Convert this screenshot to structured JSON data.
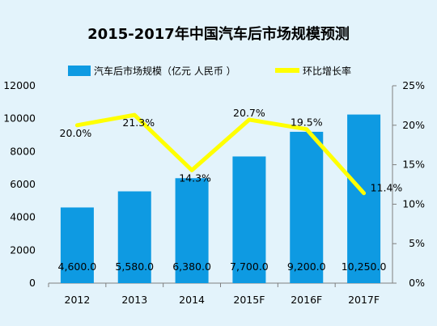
{
  "chart_data": {
    "type": "bar",
    "title": "2015-2017年中国汽车后市场规模预测",
    "categories": [
      "2012",
      "2013",
      "2014",
      "2015F",
      "2016F",
      "2017F"
    ],
    "series": [
      {
        "name": "汽车后市场规模（亿元 人民币 ）",
        "type": "bar",
        "axis": "left",
        "color": "#0e9ae2",
        "values": [
          4600.0,
          5580.0,
          6380.0,
          7700.0,
          9200.0,
          10250.0
        ],
        "labels": [
          "4,600.0",
          "5,580.0",
          "6,380.0",
          "7,700.0",
          "9,200.0",
          "10,250.0"
        ]
      },
      {
        "name": "环比增长率",
        "type": "line",
        "axis": "right",
        "color": "#ffff00",
        "values": [
          20.0,
          21.3,
          14.3,
          20.7,
          19.5,
          11.4
        ],
        "labels": [
          "20.0%",
          "21.3%",
          "14.3%",
          "20.7%",
          "19.5%",
          "11.4%"
        ]
      }
    ],
    "y_left": {
      "min": 0,
      "max": 12000,
      "ticks": [
        "0",
        "2000",
        "4000",
        "6000",
        "8000",
        "10000",
        "12000"
      ]
    },
    "y_right": {
      "min": 0,
      "max": 25,
      "ticks": [
        "0%",
        "5%",
        "10%",
        "15%",
        "20%",
        "25%"
      ]
    },
    "grid": false,
    "legend_position": "top"
  }
}
